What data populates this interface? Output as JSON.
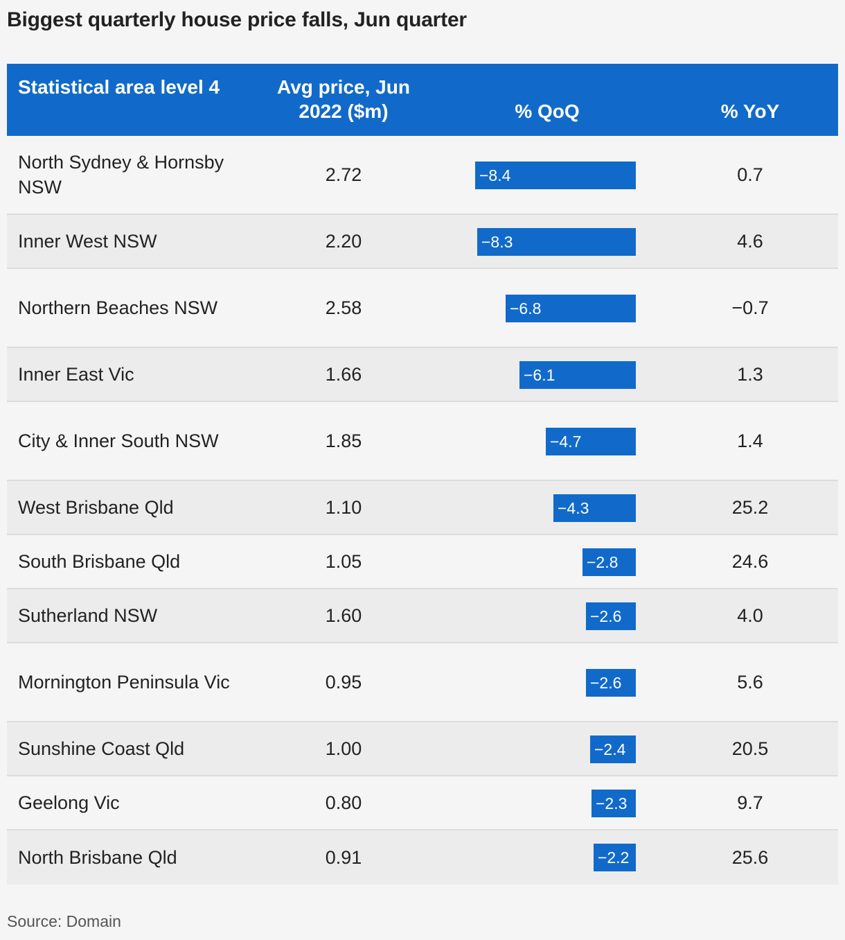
{
  "title": "Biggest quarterly house price falls, Jun quarter",
  "source": "Source: Domain",
  "colors": {
    "header_bg": "#116ac9",
    "bar": "#116ac9",
    "row_alt": "#ececec",
    "row_base": "#f5f5f5"
  },
  "chart_data": {
    "type": "table",
    "title": "Biggest quarterly house price falls, Jun quarter",
    "columns": [
      "Statistical area level 4",
      "Avg price, Jun 2022 ($m)",
      "% QoQ",
      "% YoY"
    ],
    "qoq_bar_scale_max": 8.4,
    "rows": [
      {
        "area": "North Sydney & Hornsby NSW",
        "price": "2.72",
        "qoq": -8.4,
        "qoq_label": "−8.4",
        "yoy": "0.7"
      },
      {
        "area": "Inner West NSW",
        "price": "2.20",
        "qoq": -8.3,
        "qoq_label": "−8.3",
        "yoy": "4.6"
      },
      {
        "area": "Northern Beaches NSW",
        "price": "2.58",
        "qoq": -6.8,
        "qoq_label": "−6.8",
        "yoy": "−0.7"
      },
      {
        "area": "Inner East Vic",
        "price": "1.66",
        "qoq": -6.1,
        "qoq_label": "−6.1",
        "yoy": "1.3"
      },
      {
        "area": "City & Inner South NSW",
        "price": "1.85",
        "qoq": -4.7,
        "qoq_label": "−4.7",
        "yoy": "1.4"
      },
      {
        "area": "West Brisbane Qld",
        "price": "1.10",
        "qoq": -4.3,
        "qoq_label": "−4.3",
        "yoy": "25.2"
      },
      {
        "area": "South Brisbane Qld",
        "price": "1.05",
        "qoq": -2.8,
        "qoq_label": "−2.8",
        "yoy": "24.6"
      },
      {
        "area": "Sutherland NSW",
        "price": "1.60",
        "qoq": -2.6,
        "qoq_label": "−2.6",
        "yoy": "4.0"
      },
      {
        "area": "Mornington Peninsula Vic",
        "price": "0.95",
        "qoq": -2.6,
        "qoq_label": "−2.6",
        "yoy": "5.6"
      },
      {
        "area": "Sunshine Coast Qld",
        "price": "1.00",
        "qoq": -2.4,
        "qoq_label": "−2.4",
        "yoy": "20.5"
      },
      {
        "area": "Geelong Vic",
        "price": "0.80",
        "qoq": -2.3,
        "qoq_label": "−2.3",
        "yoy": "9.7"
      },
      {
        "area": "North Brisbane Qld",
        "price": "0.91",
        "qoq": -2.2,
        "qoq_label": "−2.2",
        "yoy": "25.6"
      }
    ]
  },
  "header": {
    "area": "Statistical area level 4",
    "price": "Avg price, Jun 2022 ($m)",
    "qoq": "% QoQ",
    "yoy": "% YoY"
  }
}
